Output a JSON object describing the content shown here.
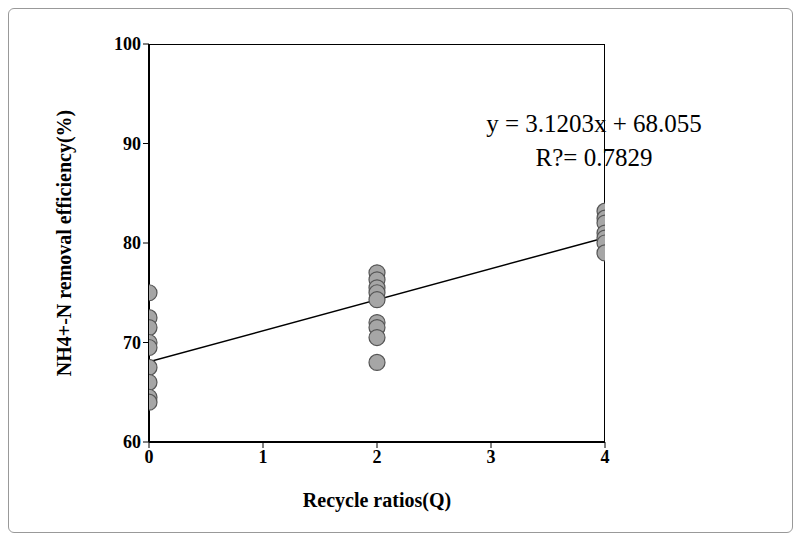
{
  "chart_data": {
    "type": "scatter",
    "x_label": "Recycle ratios(Q)",
    "y_label": "NH4+-N removal efficiency(%)",
    "annotations": [
      "y = 3.1203x + 68.055",
      "R?= 0.7829"
    ],
    "x": [
      0,
      0,
      0,
      0,
      0,
      0,
      0,
      0,
      0,
      2,
      2,
      2,
      2,
      2,
      2,
      2,
      2,
      2,
      4,
      4,
      4,
      4,
      4,
      4,
      4
    ],
    "values": [
      75,
      72.5,
      71.5,
      70,
      69.5,
      67.5,
      66,
      64.5,
      64,
      77,
      76.3,
      75.5,
      75,
      74.3,
      72,
      71.5,
      70.5,
      68,
      83.2,
      82.5,
      82,
      81,
      80.5,
      80,
      79
    ],
    "color": "#a6a6a6",
    "marker": "circle",
    "trendline": {
      "slope": 3.1203,
      "intercept": 68.055,
      "x": [
        0,
        4
      ],
      "color": "#000000"
    },
    "xlim": [
      0,
      4
    ],
    "xticks": [
      0,
      1,
      2,
      3,
      4
    ],
    "ylim": [
      60,
      100
    ],
    "yticks": [
      60,
      70,
      80,
      90,
      100
    ],
    "grid": false
  }
}
